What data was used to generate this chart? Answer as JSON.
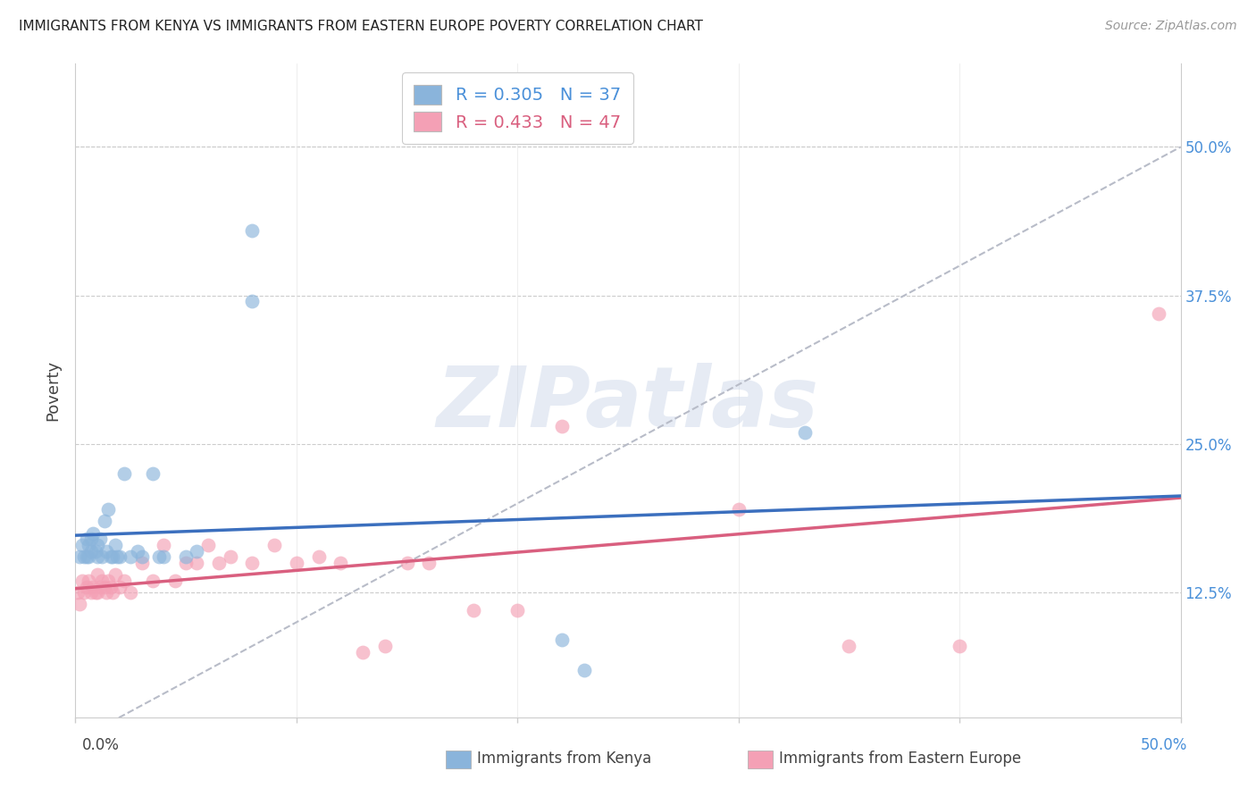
{
  "title": "IMMIGRANTS FROM KENYA VS IMMIGRANTS FROM EASTERN EUROPE POVERTY CORRELATION CHART",
  "source": "Source: ZipAtlas.com",
  "ylabel": "Poverty",
  "yticks_labels": [
    "12.5%",
    "25.0%",
    "37.5%",
    "50.0%"
  ],
  "ytick_vals": [
    0.125,
    0.25,
    0.375,
    0.5
  ],
  "xtick_label_left": "0.0%",
  "xtick_label_right": "50.0%",
  "xlim": [
    0.0,
    0.5
  ],
  "ylim": [
    0.02,
    0.57
  ],
  "kenya_color": "#8ab4db",
  "kenya_line_color": "#3B6FBE",
  "ee_color": "#f4a0b5",
  "ee_line_color": "#D95F7F",
  "dashed_line_color": "#b8bcc8",
  "legend_R_kenya": "0.305",
  "legend_N_kenya": "37",
  "legend_R_ee": "0.433",
  "legend_N_ee": "47",
  "legend_bottom_left": "Immigrants from Kenya",
  "legend_bottom_right": "Immigrants from Eastern Europe",
  "watermark": "ZIPatlas",
  "kenya_points_x": [
    0.002,
    0.003,
    0.004,
    0.005,
    0.005,
    0.006,
    0.006,
    0.007,
    0.007,
    0.008,
    0.009,
    0.01,
    0.01,
    0.011,
    0.012,
    0.013,
    0.014,
    0.015,
    0.016,
    0.017,
    0.018,
    0.019,
    0.02,
    0.022,
    0.025,
    0.028,
    0.03,
    0.035,
    0.038,
    0.04,
    0.05,
    0.055,
    0.08,
    0.08,
    0.22,
    0.23,
    0.33
  ],
  "kenya_points_y": [
    0.155,
    0.165,
    0.155,
    0.17,
    0.155,
    0.165,
    0.155,
    0.17,
    0.16,
    0.175,
    0.16,
    0.165,
    0.155,
    0.17,
    0.155,
    0.185,
    0.16,
    0.195,
    0.155,
    0.155,
    0.165,
    0.155,
    0.155,
    0.225,
    0.155,
    0.16,
    0.155,
    0.225,
    0.155,
    0.155,
    0.155,
    0.16,
    0.37,
    0.43,
    0.085,
    0.06,
    0.26
  ],
  "ee_points_x": [
    0.001,
    0.002,
    0.003,
    0.004,
    0.005,
    0.006,
    0.007,
    0.008,
    0.009,
    0.01,
    0.01,
    0.011,
    0.012,
    0.013,
    0.014,
    0.015,
    0.016,
    0.017,
    0.018,
    0.02,
    0.022,
    0.025,
    0.03,
    0.035,
    0.04,
    0.045,
    0.05,
    0.055,
    0.06,
    0.065,
    0.07,
    0.08,
    0.09,
    0.1,
    0.11,
    0.12,
    0.13,
    0.14,
    0.15,
    0.16,
    0.18,
    0.2,
    0.22,
    0.3,
    0.35,
    0.4,
    0.49
  ],
  "ee_points_y": [
    0.125,
    0.115,
    0.135,
    0.125,
    0.13,
    0.135,
    0.125,
    0.13,
    0.125,
    0.14,
    0.125,
    0.13,
    0.135,
    0.13,
    0.125,
    0.135,
    0.13,
    0.125,
    0.14,
    0.13,
    0.135,
    0.125,
    0.15,
    0.135,
    0.165,
    0.135,
    0.15,
    0.15,
    0.165,
    0.15,
    0.155,
    0.15,
    0.165,
    0.15,
    0.155,
    0.15,
    0.075,
    0.08,
    0.15,
    0.15,
    0.11,
    0.11,
    0.265,
    0.195,
    0.08,
    0.08,
    0.36
  ]
}
